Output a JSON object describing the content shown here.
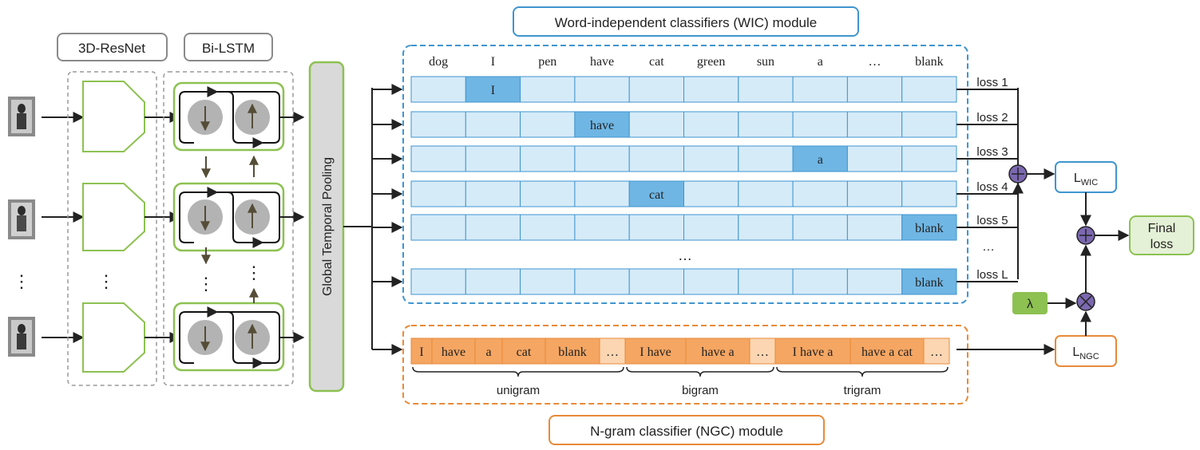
{
  "labels": {
    "resnet": "3D-ResNet",
    "bilstm": "Bi-LSTM",
    "gtp": "Global Temporal Pooling",
    "wic_title": "Word-independent classifiers (WIC) module",
    "ngc_title": "N-gram classifier (NGC) module",
    "l_wic_main": "L",
    "l_wic_sub": "WIC",
    "l_ngc_main": "L",
    "l_ngc_sub": "NGC",
    "lambda": "λ",
    "final_loss_line1": "Final",
    "final_loss_line2": "loss",
    "vertical_ellipsis": "⋮",
    "row_ellipsis": "…"
  },
  "wic": {
    "columns": [
      "dog",
      "I",
      "pen",
      "have",
      "cat",
      "green",
      "sun",
      "a",
      "…",
      "blank"
    ],
    "rows": [
      {
        "highlight_col": 1,
        "text": "I",
        "loss": "loss 1"
      },
      {
        "highlight_col": 3,
        "text": "have",
        "loss": "loss 2"
      },
      {
        "highlight_col": 7,
        "text": "a",
        "loss": "loss 3"
      },
      {
        "highlight_col": 4,
        "text": "cat",
        "loss": "loss 4"
      },
      {
        "highlight_col": 9,
        "text": "blank",
        "loss": "loss 5"
      },
      {
        "highlight_col": 9,
        "text": "blank",
        "loss": "loss L"
      }
    ],
    "loss_ellipsis": "…"
  },
  "ngc": {
    "unigram": [
      "I",
      "have",
      "a",
      "cat",
      "blank"
    ],
    "bigram": [
      "I have",
      "have a"
    ],
    "trigram": [
      "I have a",
      "have a cat"
    ],
    "ellipsis": "…",
    "group_labels": [
      "unigram",
      "bigram",
      "trigram"
    ]
  },
  "colors": {
    "wic_cell": "#d6ebf8",
    "wic_highlight": "#6fb6e4",
    "wic_border": "#3f95cf",
    "ngc_cell": "#f5a662",
    "ngc_light": "#fcd6b2",
    "ngc_border": "#e88a38",
    "green": "#8dc152",
    "plus_node": "#7b68b0",
    "lambda_fill": "#8dc152"
  }
}
